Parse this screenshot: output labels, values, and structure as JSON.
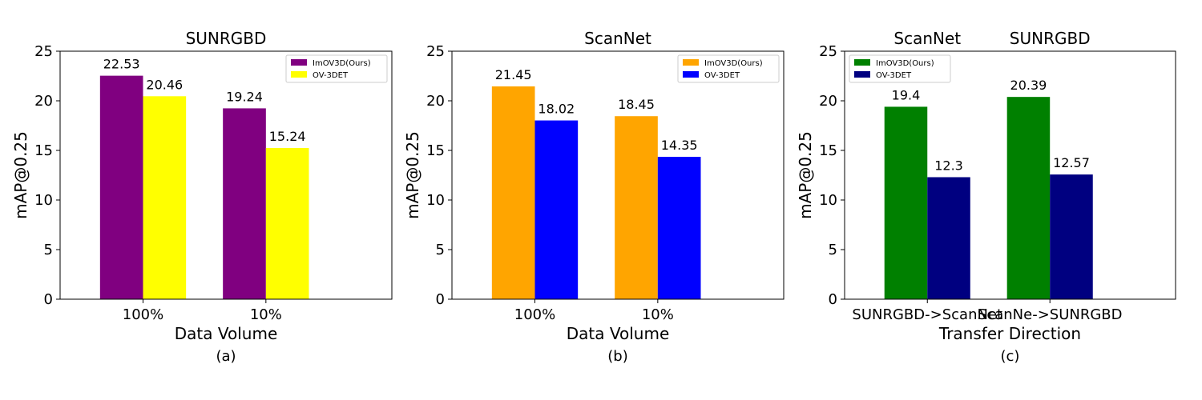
{
  "chart_data": [
    {
      "type": "bar",
      "panel_label": "(a)",
      "title": "SUNRGBD",
      "xlabel": "Data Volume",
      "ylabel": "mAP@0.25",
      "categories": [
        "100%",
        "10%"
      ],
      "ylim": [
        0,
        25
      ],
      "yticks": [
        0,
        5,
        10,
        15,
        20,
        25
      ],
      "grid": false,
      "legend_position": "upper-right",
      "series": [
        {
          "name": "ImOV3D(Ours)",
          "values": [
            22.53,
            19.24
          ],
          "labels": [
            "22.53",
            "19.24"
          ],
          "color": "#800080"
        },
        {
          "name": "OV-3DET",
          "values": [
            20.46,
            15.24
          ],
          "labels": [
            "20.46",
            "15.24"
          ],
          "color": "#ffff00"
        }
      ]
    },
    {
      "type": "bar",
      "panel_label": "(b)",
      "title": "ScanNet",
      "xlabel": "Data Volume",
      "ylabel": "mAP@0.25",
      "categories": [
        "100%",
        "10%"
      ],
      "ylim": [
        0,
        25
      ],
      "yticks": [
        0,
        5,
        10,
        15,
        20,
        25
      ],
      "grid": false,
      "legend_position": "upper-right",
      "series": [
        {
          "name": "ImOV3D(Ours)",
          "values": [
            21.45,
            18.45
          ],
          "labels": [
            "21.45",
            "18.45"
          ],
          "color": "#ffa500"
        },
        {
          "name": "OV-3DET",
          "values": [
            18.02,
            14.35
          ],
          "labels": [
            "18.02",
            "14.35"
          ],
          "color": "#0000ff"
        }
      ]
    },
    {
      "type": "bar",
      "panel_label": "(c)",
      "title": "",
      "group_titles": [
        "ScanNet",
        "SUNRGBD"
      ],
      "xlabel": "Transfer Direction",
      "ylabel": "mAP@0.25",
      "categories": [
        "SUNRGBD->ScanNet",
        "ScanNe->SUNRGBD"
      ],
      "ylim": [
        0,
        25
      ],
      "yticks": [
        0,
        5,
        10,
        15,
        20,
        25
      ],
      "grid": false,
      "legend_position": "upper-left",
      "series": [
        {
          "name": "ImOV3D(Ours)",
          "values": [
            19.4,
            20.39
          ],
          "labels": [
            "19.4",
            "20.39"
          ],
          "color": "#008000"
        },
        {
          "name": "OV-3DET",
          "values": [
            12.3,
            12.57
          ],
          "labels": [
            "12.3",
            "12.57"
          ],
          "color": "#000080"
        }
      ]
    }
  ]
}
